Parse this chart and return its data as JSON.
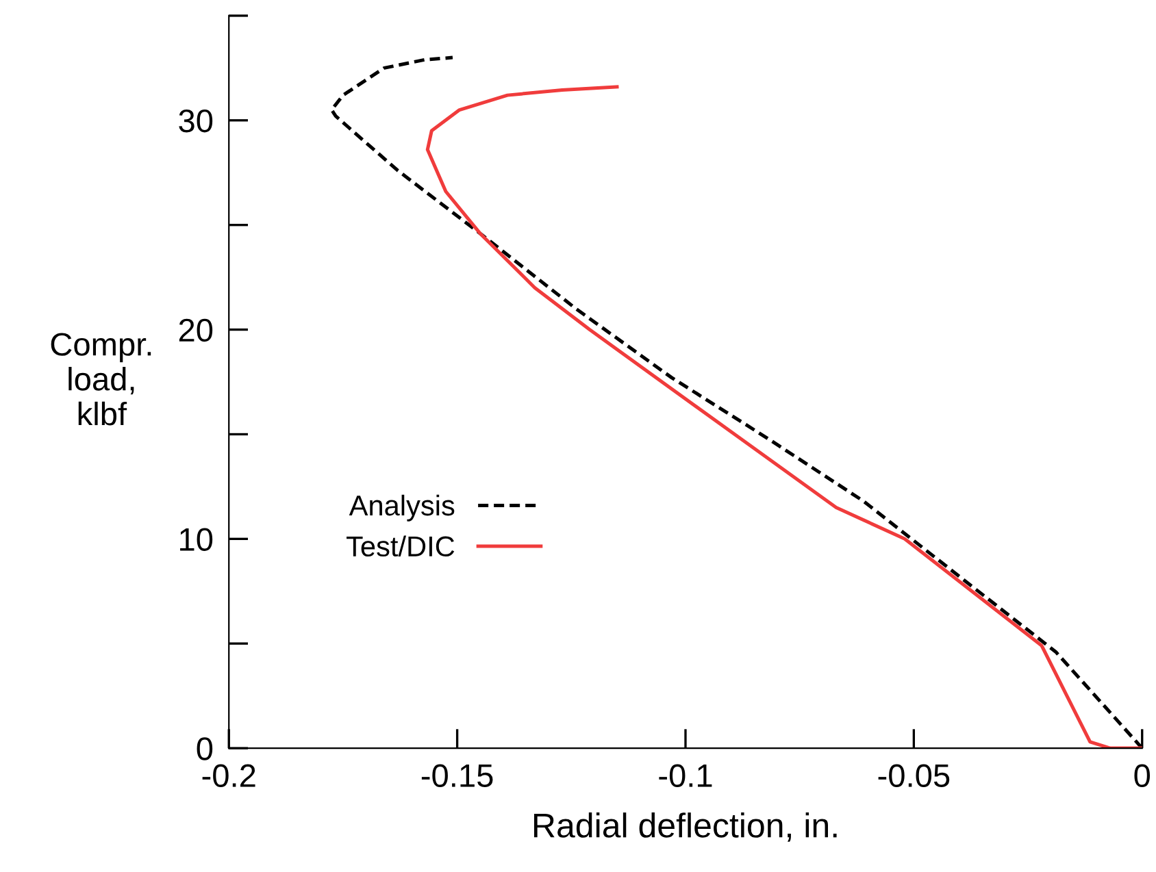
{
  "chart_data": {
    "type": "line",
    "xlabel": "Radial deflection, in.",
    "ylabel": "Compr.\nload,\nklbf",
    "xlim": [
      -0.2,
      0
    ],
    "ylim": [
      0,
      35
    ],
    "xticks": [
      -0.2,
      -0.15,
      -0.1,
      -0.05,
      0
    ],
    "yticks": [
      0,
      {
        "value": 5,
        "label": null
      },
      10,
      {
        "value": 15,
        "label": null
      },
      20,
      {
        "value": 25,
        "label": null
      },
      30,
      {
        "value": 35,
        "label": null
      }
    ],
    "legend": "center left",
    "grid": false,
    "series": [
      {
        "name": "Analysis",
        "color": "#000000",
        "line_style": "dashed",
        "x": [
          0,
          -0.0189,
          -0.04,
          -0.061,
          -0.082,
          -0.103,
          -0.124,
          -0.145,
          -0.163,
          -0.1766,
          -0.1775,
          -0.175,
          -0.166,
          -0.157,
          -0.151
        ],
        "values": [
          0,
          4.6,
          8.2,
          11.8,
          14.8,
          17.7,
          21.0,
          24.6,
          27.6,
          30.2,
          30.5,
          31.2,
          32.5,
          32.9,
          33.0
        ]
      },
      {
        "name": "Test/DIC",
        "color": "#f03c3c",
        "line_style": "solid",
        "x": [
          0,
          -0.007,
          -0.0114,
          -0.0144,
          -0.022,
          -0.052,
          -0.067,
          -0.088,
          -0.121,
          -0.133,
          -0.145,
          -0.1525,
          -0.1565,
          -0.1556,
          -0.1495,
          -0.139,
          -0.127,
          -0.115
        ],
        "values": [
          0,
          0,
          0.3,
          1.6,
          4.9,
          10,
          11.5,
          14.8,
          20,
          22,
          24.6,
          26.6,
          28.6,
          29.5,
          30.5,
          31.2,
          31.45,
          31.6
        ]
      }
    ]
  }
}
